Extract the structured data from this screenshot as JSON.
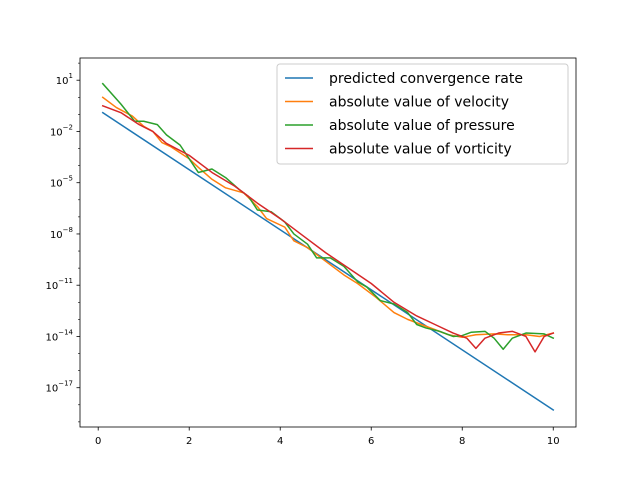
{
  "chart_data": {
    "type": "line",
    "title": "",
    "xlabel": "",
    "ylabel": "",
    "xlim": [
      -0.4,
      10.5
    ],
    "ylim_log10": [
      -19.3,
      2.3
    ],
    "yscale": "log",
    "grid": false,
    "legend_position": "top-right",
    "x_ticks": [
      0,
      2,
      4,
      6,
      8,
      10
    ],
    "x_tick_labels": [
      "0",
      "2",
      "4",
      "6",
      "8",
      "10"
    ],
    "y_ticks_log10": [
      1,
      -2,
      -5,
      -8,
      -11,
      -14,
      -17
    ],
    "y_tick_labels": [
      {
        "base": "10",
        "exp": "1"
      },
      {
        "base": "10",
        "exp": "−2"
      },
      {
        "base": "10",
        "exp": "−5"
      },
      {
        "base": "10",
        "exp": "−8"
      },
      {
        "base": "10",
        "exp": "−11"
      },
      {
        "base": "10",
        "exp": "−14"
      },
      {
        "base": "10",
        "exp": "−17"
      }
    ],
    "series": [
      {
        "name": "predicted convergence rate",
        "color": "#1f77b4",
        "points_log10": [
          [
            0.1,
            -0.9
          ],
          [
            10.0,
            -18.3
          ]
        ]
      },
      {
        "name": "absolute value of velocity",
        "color": "#ff7f0e",
        "points_log10": [
          [
            0.1,
            0.0
          ],
          [
            0.4,
            -0.6
          ],
          [
            0.75,
            -1.1
          ],
          [
            1.0,
            -1.7
          ],
          [
            1.2,
            -2.0
          ],
          [
            1.4,
            -2.65
          ],
          [
            1.6,
            -2.9
          ],
          [
            2.0,
            -3.6
          ],
          [
            2.2,
            -4.1
          ],
          [
            2.5,
            -4.8
          ],
          [
            2.8,
            -5.3
          ],
          [
            3.2,
            -5.6
          ],
          [
            3.5,
            -6.4
          ],
          [
            3.7,
            -7.1
          ],
          [
            4.1,
            -7.6
          ],
          [
            4.3,
            -8.4
          ],
          [
            4.6,
            -8.8
          ],
          [
            5.0,
            -9.6
          ],
          [
            5.4,
            -10.4
          ],
          [
            5.7,
            -10.9
          ],
          [
            6.1,
            -11.7
          ],
          [
            6.5,
            -12.6
          ],
          [
            6.8,
            -13.0
          ],
          [
            7.1,
            -13.3
          ],
          [
            7.4,
            -13.6
          ],
          [
            7.7,
            -13.9
          ],
          [
            8.0,
            -14.05
          ],
          [
            8.3,
            -13.9
          ],
          [
            8.7,
            -13.85
          ],
          [
            9.0,
            -13.9
          ],
          [
            9.4,
            -13.9
          ],
          [
            9.7,
            -14.0
          ],
          [
            10.0,
            -13.8
          ]
        ]
      },
      {
        "name": "absolute value of pressure",
        "color": "#2ca02c",
        "points_log10": [
          [
            0.1,
            0.8
          ],
          [
            0.5,
            -0.4
          ],
          [
            0.8,
            -1.4
          ],
          [
            1.0,
            -1.4
          ],
          [
            1.3,
            -1.6
          ],
          [
            1.5,
            -2.2
          ],
          [
            1.8,
            -2.8
          ],
          [
            2.0,
            -3.6
          ],
          [
            2.2,
            -4.4
          ],
          [
            2.5,
            -4.2
          ],
          [
            2.8,
            -4.7
          ],
          [
            3.1,
            -5.4
          ],
          [
            3.3,
            -5.8
          ],
          [
            3.5,
            -6.6
          ],
          [
            3.8,
            -6.7
          ],
          [
            4.1,
            -7.3
          ],
          [
            4.3,
            -8.0
          ],
          [
            4.6,
            -8.6
          ],
          [
            4.8,
            -9.4
          ],
          [
            5.1,
            -9.4
          ],
          [
            5.4,
            -9.9
          ],
          [
            5.7,
            -10.8
          ],
          [
            5.9,
            -11.1
          ],
          [
            6.2,
            -11.9
          ],
          [
            6.5,
            -12.1
          ],
          [
            6.8,
            -12.6
          ],
          [
            7.0,
            -13.3
          ],
          [
            7.2,
            -13.5
          ],
          [
            7.5,
            -13.7
          ],
          [
            7.8,
            -14.0
          ],
          [
            8.0,
            -13.95
          ],
          [
            8.2,
            -13.75
          ],
          [
            8.5,
            -13.7
          ],
          [
            8.7,
            -14.1
          ],
          [
            8.9,
            -14.75
          ],
          [
            9.1,
            -14.1
          ],
          [
            9.4,
            -13.8
          ],
          [
            9.8,
            -13.85
          ],
          [
            10.0,
            -14.1
          ]
        ]
      },
      {
        "name": "absolute value of vorticity",
        "color": "#d62728",
        "points_log10": [
          [
            0.1,
            -0.5
          ],
          [
            0.5,
            -0.9
          ],
          [
            0.9,
            -1.6
          ],
          [
            1.2,
            -2.0
          ],
          [
            1.5,
            -2.7
          ],
          [
            2.0,
            -3.4
          ],
          [
            2.5,
            -4.4
          ],
          [
            3.0,
            -5.2
          ],
          [
            3.5,
            -6.2
          ],
          [
            4.0,
            -7.1
          ],
          [
            4.5,
            -8.1
          ],
          [
            5.0,
            -9.1
          ],
          [
            5.5,
            -10.0
          ],
          [
            6.0,
            -10.9
          ],
          [
            6.5,
            -12.0
          ],
          [
            7.0,
            -12.8
          ],
          [
            7.4,
            -13.3
          ],
          [
            7.8,
            -13.8
          ],
          [
            8.1,
            -14.1
          ],
          [
            8.3,
            -14.7
          ],
          [
            8.5,
            -14.1
          ],
          [
            8.8,
            -13.8
          ],
          [
            9.1,
            -13.7
          ],
          [
            9.4,
            -14.0
          ],
          [
            9.6,
            -14.9
          ],
          [
            9.8,
            -14.0
          ],
          [
            10.0,
            -13.8
          ]
        ]
      }
    ]
  }
}
